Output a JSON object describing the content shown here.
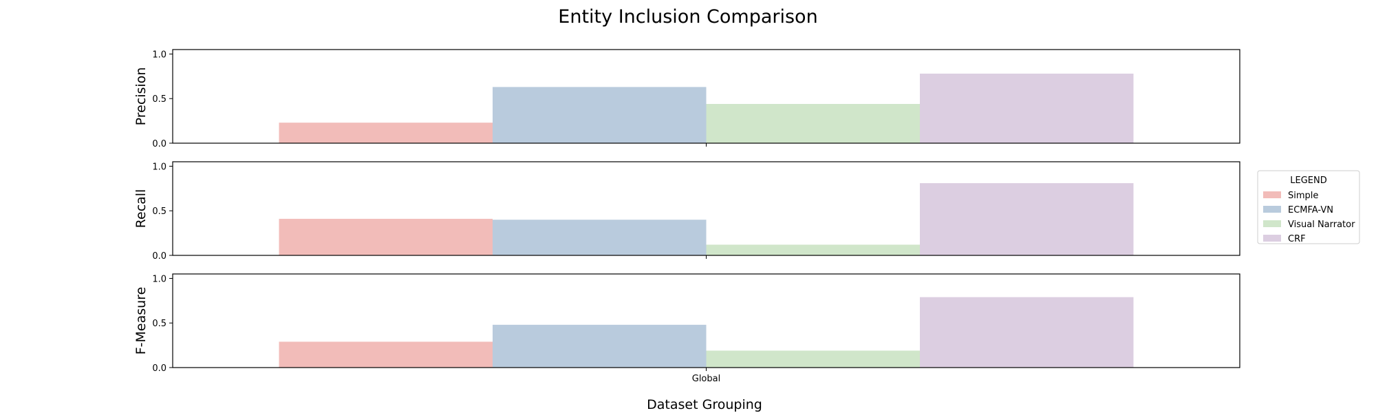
{
  "chart_data": {
    "type": "bar",
    "title": "Entity Inclusion Comparison",
    "xlabel": "Dataset Grouping",
    "categories": [
      "Global"
    ],
    "ylim": [
      0,
      1.05
    ],
    "yticks": [
      "0.0",
      "0.5",
      "1.0"
    ],
    "series_names": [
      "Simple",
      "ECMFA-VN",
      "Visual Narrator",
      "CRF"
    ],
    "colors": [
      "#f2bcb9",
      "#b9cbdd",
      "#d0e6ca",
      "#dccee1"
    ],
    "legend": {
      "title": "LEGEND",
      "placement": "right"
    },
    "panels": [
      {
        "ylabel": "Precision",
        "values": [
          0.23,
          0.63,
          0.44,
          0.78
        ]
      },
      {
        "ylabel": "Recall",
        "values": [
          0.41,
          0.4,
          0.12,
          0.81
        ]
      },
      {
        "ylabel": "F-Measure",
        "values": [
          0.29,
          0.48,
          0.19,
          0.79
        ]
      }
    ]
  }
}
